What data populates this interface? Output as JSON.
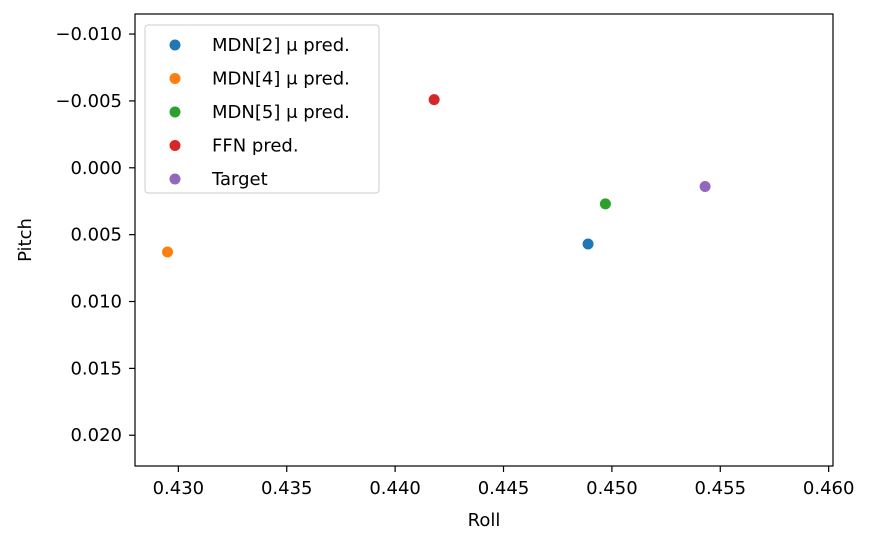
{
  "chart_data": {
    "type": "scatter",
    "title": "",
    "xlabel": "Roll",
    "ylabel": "Pitch",
    "xlim": [
      0.428,
      0.4602
    ],
    "ylim": [
      0.0223,
      -0.0115
    ],
    "y_inverted": true,
    "grid": false,
    "legend_position": "top-left",
    "x_ticks": [
      {
        "value": 0.43,
        "label": "0.430"
      },
      {
        "value": 0.435,
        "label": "0.435"
      },
      {
        "value": 0.44,
        "label": "0.440"
      },
      {
        "value": 0.445,
        "label": "0.445"
      },
      {
        "value": 0.45,
        "label": "0.450"
      },
      {
        "value": 0.455,
        "label": "0.455"
      },
      {
        "value": 0.46,
        "label": "0.460"
      }
    ],
    "y_ticks": [
      {
        "value": -0.01,
        "label": "−0.010"
      },
      {
        "value": -0.005,
        "label": "−0.005"
      },
      {
        "value": 0.0,
        "label": "0.000"
      },
      {
        "value": 0.005,
        "label": "0.005"
      },
      {
        "value": 0.01,
        "label": "0.010"
      },
      {
        "value": 0.015,
        "label": "0.015"
      },
      {
        "value": 0.02,
        "label": "0.020"
      }
    ],
    "series": [
      {
        "name": "MDN[2] μ pred.",
        "color": "#1f77b4",
        "points": [
          {
            "x": 0.4489,
            "y": 0.0057
          }
        ]
      },
      {
        "name": "MDN[4] μ pred.",
        "color": "#ff7f0e",
        "points": [
          {
            "x": 0.4295,
            "y": 0.0063
          }
        ]
      },
      {
        "name": "MDN[5] μ pred.",
        "color": "#2ca02c",
        "points": [
          {
            "x": 0.4497,
            "y": 0.0027
          }
        ]
      },
      {
        "name": "FFN pred.",
        "color": "#d62728",
        "points": [
          {
            "x": 0.4418,
            "y": -0.0051
          }
        ]
      },
      {
        "name": "Target",
        "color": "#9467bd",
        "points": [
          {
            "x": 0.4543,
            "y": 0.0014
          }
        ]
      }
    ]
  }
}
